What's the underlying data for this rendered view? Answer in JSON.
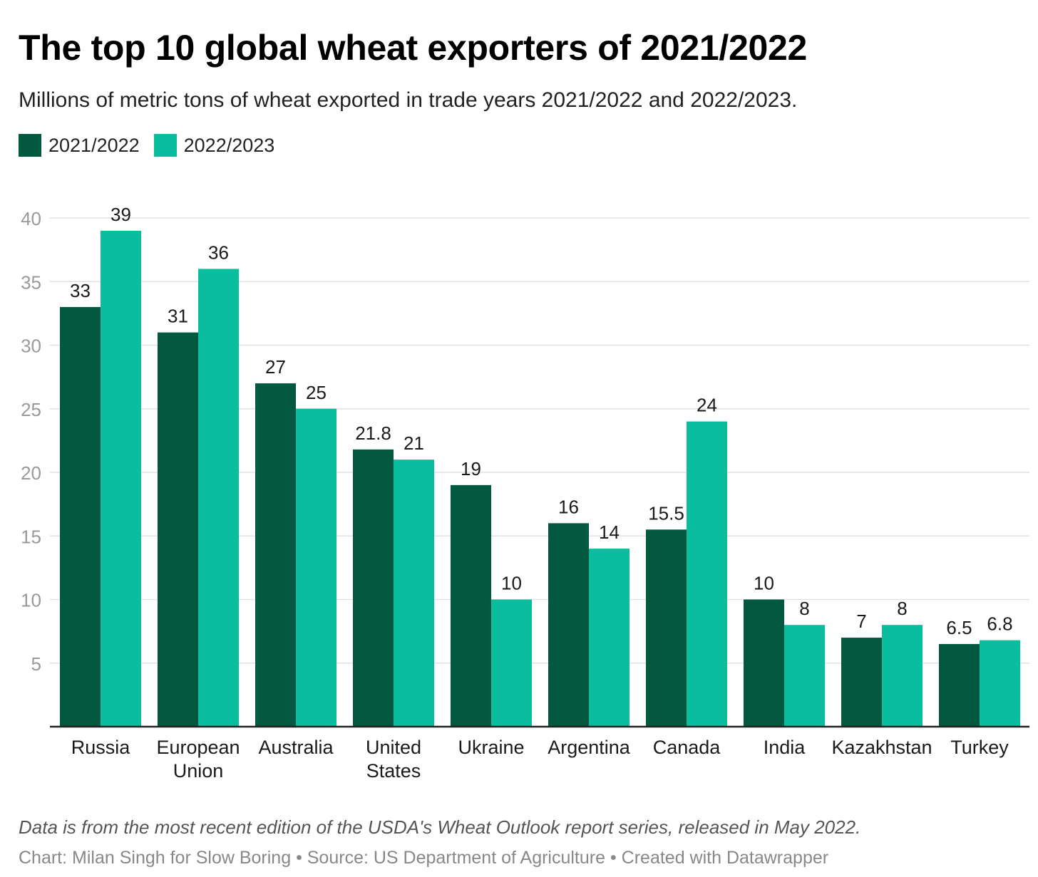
{
  "chart_data": {
    "type": "bar",
    "title": "The top 10 global wheat exporters of 2021/2022",
    "subtitle": "Millions of metric tons of wheat exported in trade years 2021/2022 and 2022/2023.",
    "categories": [
      [
        "Russia"
      ],
      [
        "European",
        "Union"
      ],
      [
        "Australia"
      ],
      [
        "United",
        "States"
      ],
      [
        "Ukraine"
      ],
      [
        "Argentina"
      ],
      [
        "Canada"
      ],
      [
        "India"
      ],
      [
        "Kazakhstan"
      ],
      [
        "Turkey"
      ]
    ],
    "series": [
      {
        "name": "2021/2022",
        "color": "#025940",
        "values": [
          33,
          31,
          27,
          21.8,
          19,
          16,
          15.5,
          10,
          7,
          6.5
        ],
        "labels": [
          "33",
          "31",
          "27",
          "21.8",
          "19",
          "16",
          "15.5",
          "10",
          "7",
          "6.5"
        ]
      },
      {
        "name": "2022/2023",
        "color": "#0bbd9f",
        "values": [
          39,
          36,
          25,
          21,
          10,
          14,
          24,
          8,
          8,
          6.8
        ],
        "labels": [
          "39",
          "36",
          "25",
          "21",
          "10",
          "14",
          "24",
          "8",
          "8",
          "6.8"
        ]
      }
    ],
    "ylim": [
      0,
      40
    ],
    "yticks": [
      5,
      10,
      15,
      20,
      25,
      30,
      35,
      40
    ],
    "xlabel": "",
    "ylabel": "",
    "grid": true,
    "legend": "top-left"
  },
  "notes": "Data is from the most recent edition of the USDA's Wheat Outlook report series, released in May 2022.",
  "credit": "Chart: Milan Singh for Slow Boring • Source: US Department of Agriculture • Created with Datawrapper"
}
